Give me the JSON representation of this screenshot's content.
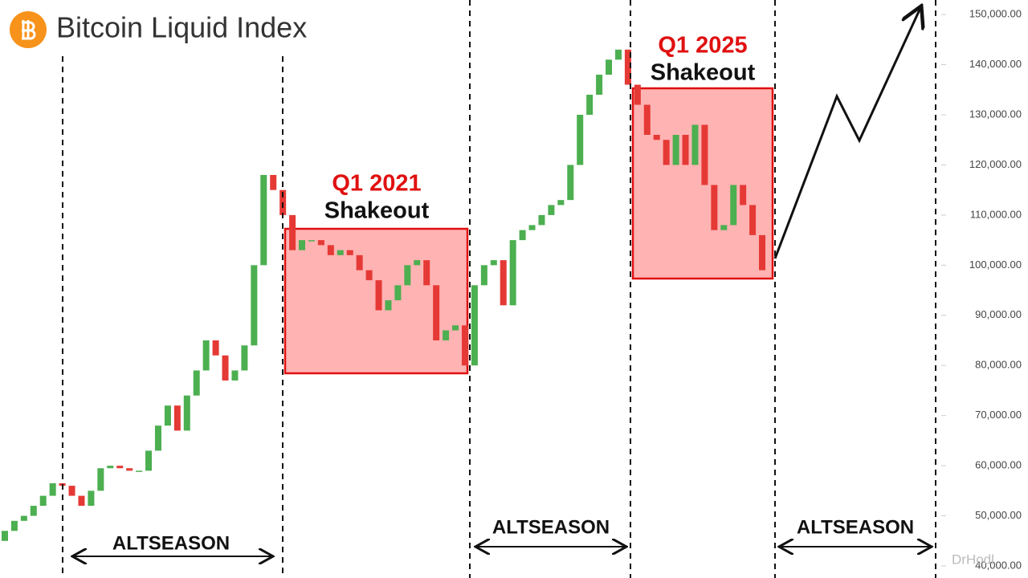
{
  "chart_data": {
    "type": "candlestick",
    "title": "Bitcoin Liquid Index",
    "categories": [
      null,
      null,
      null,
      null,
      null,
      null,
      null,
      null,
      null,
      null,
      null,
      null,
      null,
      null,
      null,
      null,
      null,
      null,
      null,
      null,
      null,
      null,
      null,
      null,
      null,
      null,
      null,
      null,
      null,
      null,
      null,
      null,
      null,
      null,
      null,
      null,
      null,
      null,
      null,
      null,
      null,
      null,
      null,
      null,
      null,
      null,
      null,
      null,
      null,
      null,
      null,
      null,
      null,
      null,
      null,
      null,
      null,
      null,
      null,
      null,
      null,
      null,
      null,
      null,
      null,
      null,
      null,
      null,
      null,
      null,
      null,
      null,
      null,
      null,
      null,
      null,
      null,
      null,
      null,
      null
    ],
    "series": [
      {
        "up_color": "#4caf50",
        "down_color": "#e53935",
        "open": [
          45000,
          47000,
          49000,
          50000,
          52000,
          54000,
          56500,
          56000,
          54000,
          52000,
          55000,
          59500,
          60000,
          59500,
          59000,
          59000,
          63000,
          68000,
          72000,
          67000,
          74000,
          79000,
          85000,
          82000,
          77000,
          79000,
          84000,
          100000,
          118000,
          115000,
          110000,
          103000,
          105000,
          105000,
          104000,
          102000,
          103000,
          102000,
          99000,
          97000,
          91000,
          93000,
          96000,
          100000,
          101000,
          96000,
          85000,
          87000,
          88000,
          80000,
          96000,
          100000,
          101000,
          92000,
          105000,
          107000,
          108000,
          110000,
          112000,
          113000,
          120000,
          130000,
          134000,
          138000,
          141000,
          143000,
          136000,
          132000,
          126000,
          125000,
          120000,
          126000,
          120000,
          128000,
          116000,
          107000,
          108000,
          116000,
          112000,
          106000
        ],
        "close": [
          47000,
          49000,
          50000,
          52000,
          54000,
          56500,
          56000,
          54000,
          52000,
          55000,
          59500,
          60000,
          59500,
          59000,
          59000,
          63000,
          68000,
          72000,
          67000,
          74000,
          79000,
          85000,
          82000,
          77000,
          79000,
          84000,
          100000,
          118000,
          115000,
          110000,
          103000,
          105000,
          105000,
          104000,
          102000,
          103000,
          102000,
          99000,
          97000,
          91000,
          93000,
          96000,
          100000,
          101000,
          96000,
          85000,
          87000,
          88000,
          80000,
          96000,
          100000,
          101000,
          92000,
          105000,
          107000,
          108000,
          110000,
          112000,
          113000,
          120000,
          130000,
          134000,
          138000,
          141000,
          143000,
          136000,
          132000,
          126000,
          125000,
          120000,
          126000,
          120000,
          128000,
          116000,
          107000,
          108000,
          116000,
          112000,
          106000,
          99000
        ]
      }
    ],
    "ylim": [
      37600,
      152900
    ],
    "yticks": [
      {
        "value": 40000,
        "label": "40,000.00"
      },
      {
        "value": 50000,
        "label": "50,000.00"
      },
      {
        "value": 60000,
        "label": "60,000.00"
      },
      {
        "value": 70000,
        "label": "70,000.00"
      },
      {
        "value": 80000,
        "label": "80,000.00"
      },
      {
        "value": 90000,
        "label": "90,000.00"
      },
      {
        "value": 100000,
        "label": "100,000.00"
      },
      {
        "value": 110000,
        "label": "110,000.00"
      },
      {
        "value": 120000,
        "label": "120,000.00"
      },
      {
        "value": 130000,
        "label": "130,000.00"
      },
      {
        "value": 140000,
        "label": "140,000.00"
      },
      {
        "value": 150000,
        "label": "150,000.00"
      }
    ],
    "annotations": {
      "q1_2021": "Q1 2021",
      "shakeout_2021": "Shakeout",
      "q1_2025": "Q1 2025",
      "shakeout_2025": "Shakeout",
      "altseason_1": "ALTSEASON",
      "altseason_2": "ALTSEASON",
      "altseason_3": "ALTSEASON",
      "watermark": "DrHodl"
    }
  }
}
